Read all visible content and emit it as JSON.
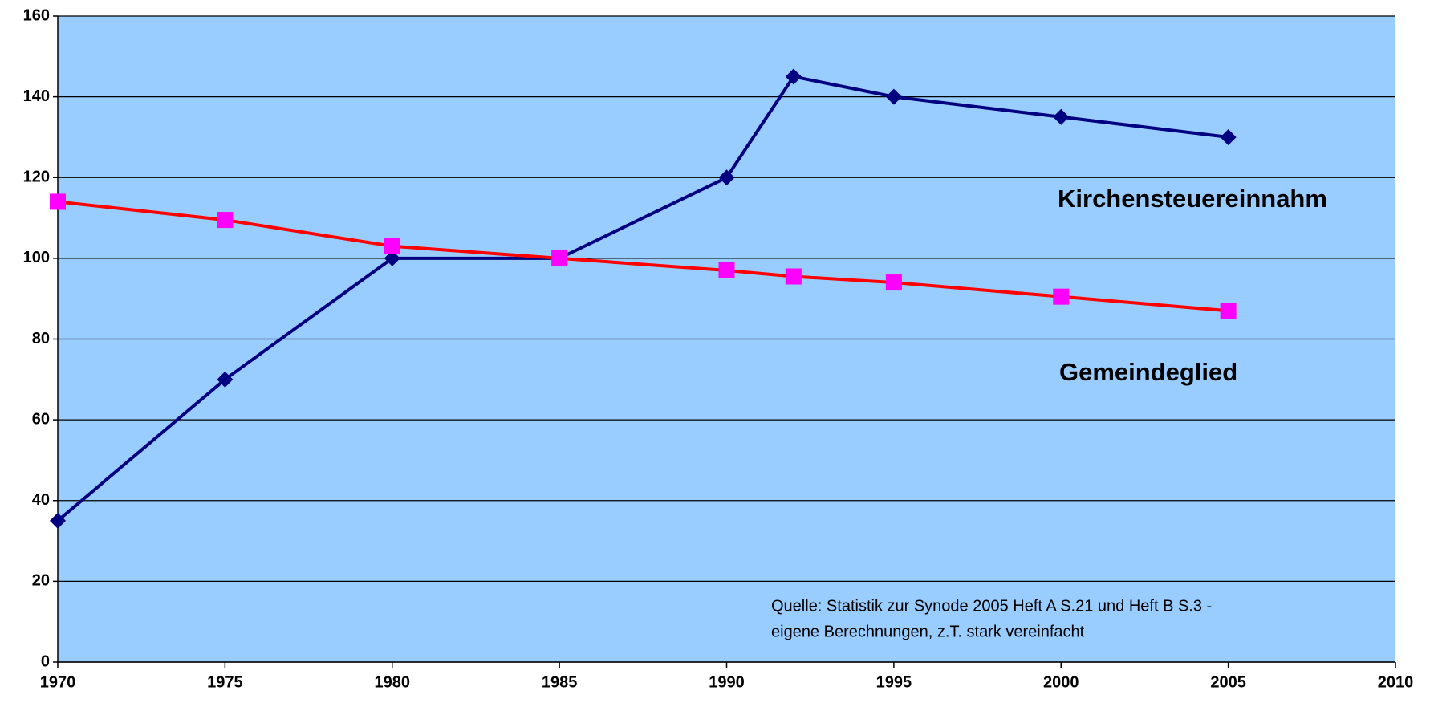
{
  "chart_data": {
    "type": "line",
    "x": [
      1970,
      1975,
      1980,
      1985,
      1990,
      1992,
      1995,
      2000,
      2005
    ],
    "series": [
      {
        "name": "Kirchensteuereinnahm",
        "color": "#000080",
        "marker_color": "#000080",
        "marker": "diamond",
        "values": [
          35,
          70,
          100,
          100,
          120,
          145,
          140,
          135,
          130
        ]
      },
      {
        "name": "Gemeindeglied",
        "color": "#ff0000",
        "marker_color": "#ff00ff",
        "marker": "square",
        "values": [
          114,
          109.5,
          103,
          100,
          97,
          95.5,
          94,
          90.5,
          87
        ]
      }
    ],
    "xlim": [
      1970,
      2010
    ],
    "xticks": [
      1970,
      1975,
      1980,
      1985,
      1990,
      1995,
      2000,
      2005,
      2010
    ],
    "ylim": [
      0,
      160
    ],
    "yticks": [
      0,
      20,
      40,
      60,
      80,
      100,
      120,
      140,
      160
    ],
    "grid": true,
    "plot_background": "#99ccff",
    "annotation": [
      "Quelle: Statistik zur Synode 2005 Heft A S.21 und Heft B S.3 -",
      "eigene Berechnungen, z.T. stark vereinfacht"
    ]
  }
}
